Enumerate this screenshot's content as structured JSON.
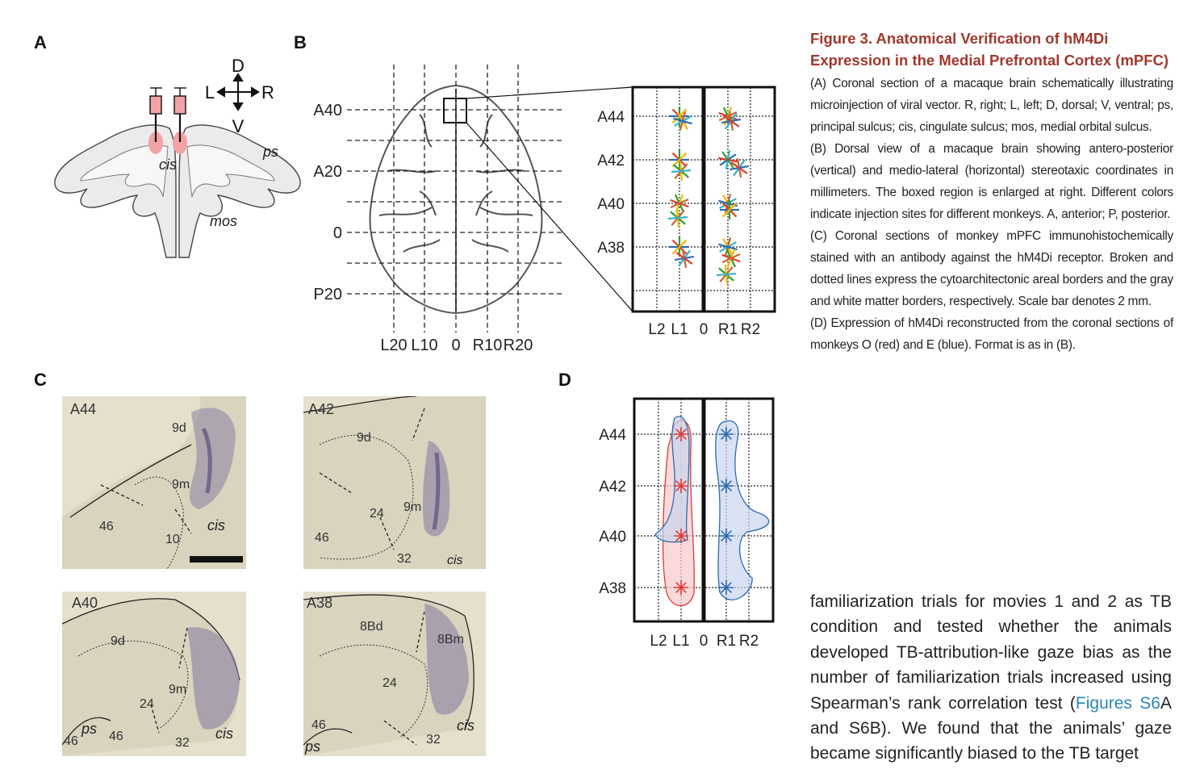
{
  "panels": {
    "a": "A",
    "b": "B",
    "c": "C",
    "d": "D"
  },
  "panel_a": {
    "compass": {
      "d": "D",
      "l": "L",
      "r": "R",
      "v": "V"
    },
    "labels": {
      "cis": "cis",
      "ps": "ps",
      "mos": "mos"
    }
  },
  "panel_b": {
    "y_ticks": [
      "A40",
      "A20",
      "0",
      "P20"
    ],
    "x_ticks": [
      "L20",
      "L10",
      "0",
      "R10",
      "R20"
    ],
    "inset_y_ticks": [
      "A44",
      "A42",
      "A40",
      "A38"
    ],
    "inset_x_ticks": [
      "L2",
      "L1",
      "0",
      "R1",
      "R2"
    ],
    "monkey_colors": [
      "#2b6cb0",
      "#e03a2f",
      "#2ca02c",
      "#f2b701",
      "#c8622a",
      "#38b2c8"
    ]
  },
  "panel_c": {
    "sections": [
      {
        "level": "A44",
        "areas": [
          "9d",
          "9m",
          "46",
          "10"
        ],
        "sulcus": "cis"
      },
      {
        "level": "A42",
        "areas": [
          "9d",
          "9m",
          "24",
          "46",
          "32"
        ],
        "sulcus": "cis"
      },
      {
        "level": "A40",
        "areas": [
          "9d",
          "9m",
          "24",
          "46",
          "46",
          "32"
        ],
        "sulci": [
          "ps",
          "cis"
        ]
      },
      {
        "level": "A38",
        "areas": [
          "8Bd",
          "8Bm",
          "24",
          "46",
          "32"
        ],
        "sulci": [
          "ps",
          "cis"
        ]
      }
    ]
  },
  "panel_d": {
    "y_ticks": [
      "A44",
      "A42",
      "A40",
      "A38"
    ],
    "x_ticks": [
      "L2",
      "L1",
      "0",
      "R1",
      "R2"
    ],
    "monkey_o_color": "#e03a2f",
    "monkey_e_color": "#2b6cb0"
  },
  "caption": {
    "title": "Figure 3. Anatomical Verification of hM4Di Expression in the Medial Prefrontal Cortex (mPFC)",
    "a": "(A) Coronal section of a macaque brain schematically illustrating microinjection of viral vector. R, right; L, left; D, dorsal; V, ventral; ps, principal sulcus; cis, cingulate sulcus; mos, medial orbital sulcus.",
    "b": "(B) Dorsal view of a macaque brain showing antero-posterior (vertical) and medio-lateral (horizontal) stereotaxic coordinates in millimeters. The boxed region is enlarged at right. Different colors indicate injection sites for different monkeys. A, anterior; P, posterior.",
    "c": "(C) Coronal sections of monkey mPFC immunohistochemically stained with an antibody against the hM4Di receptor. Broken and dotted lines express the cytoarchitectonic areal borders and the gray and white matter borders, respectively. Scale bar denotes 2 mm.",
    "d": "(D) Expression of hM4Di reconstructed from the coronal sections of monkeys O (red) and E (blue). Format is as in (B)."
  },
  "body": {
    "before_link": "familiarization trials for movies 1 and 2 as TB condition and tested whether the animals developed TB-attribution-like gaze bias as the number of familiarization trials increased using Spearman’s rank correlation test (",
    "link": "Figures S6",
    "after_link": "A and S6B). We found that the animals’ gaze became significantly biased to the TB target"
  }
}
